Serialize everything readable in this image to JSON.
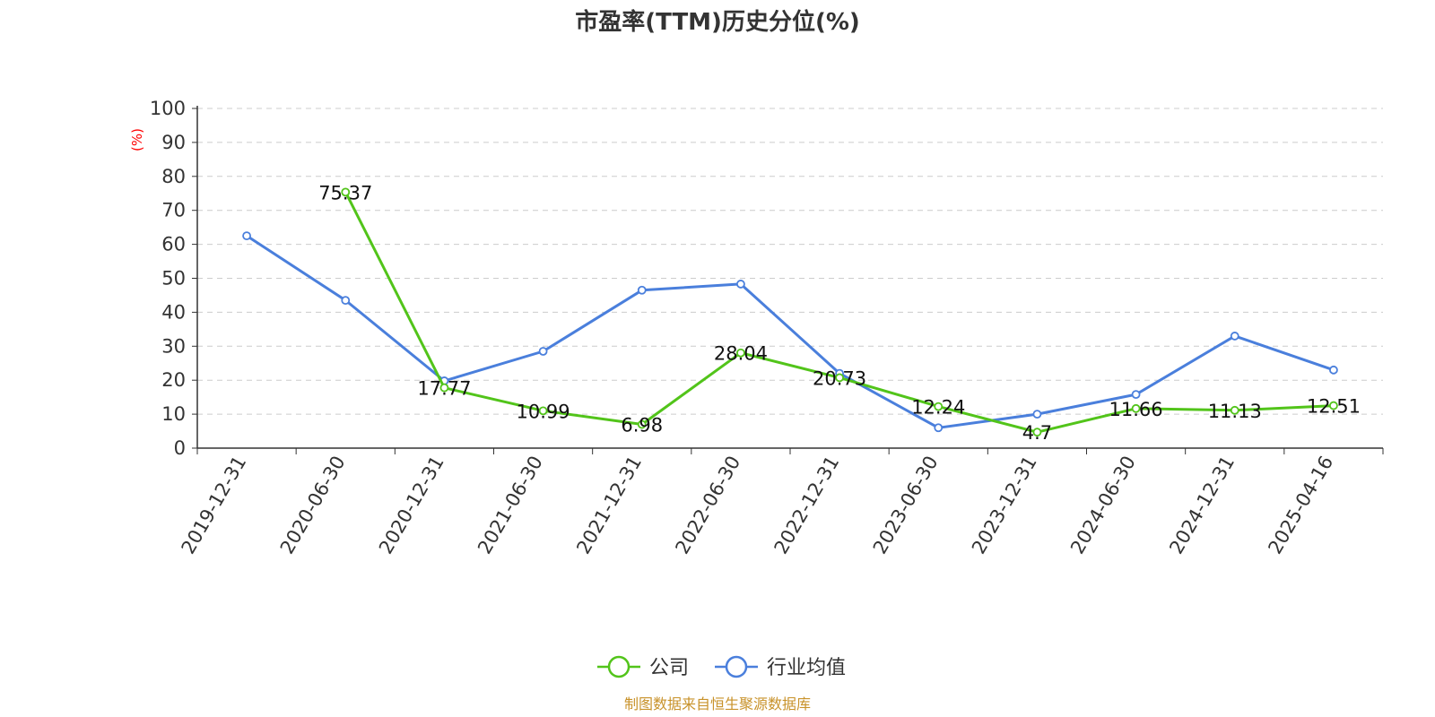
{
  "chart_data": {
    "type": "line",
    "title": "市盈率(TTM)历史分位(%)",
    "y_unit": "(%)",
    "ylim": [
      0,
      100
    ],
    "y_ticks": [
      0,
      10,
      20,
      30,
      40,
      50,
      60,
      70,
      80,
      90,
      100
    ],
    "grid": true,
    "legend_position": "bottom",
    "categories": [
      "2019-12-31",
      "2020-06-30",
      "2020-12-31",
      "2021-06-30",
      "2021-12-31",
      "2022-06-30",
      "2022-12-31",
      "2023-06-30",
      "2023-12-31",
      "2024-06-30",
      "2024-12-31",
      "2025-04-16"
    ],
    "series": [
      {
        "name": "公司",
        "color": "#52c41a",
        "values": [
          null,
          75.37,
          17.77,
          10.99,
          6.98,
          28.04,
          20.73,
          12.24,
          4.7,
          11.66,
          11.13,
          12.51
        ],
        "labels": [
          "",
          "75.37",
          "17.77",
          "10.99",
          "6.98",
          "28.04",
          "20.73",
          "12.24",
          "4.7",
          "11.66",
          "11.13",
          "12.51"
        ]
      },
      {
        "name": "行业均值",
        "color": "#4a7fdc",
        "values": [
          62.5,
          43.5,
          19.8,
          28.5,
          46.5,
          48.3,
          22.0,
          6.0,
          10.0,
          15.8,
          33.0,
          23.0
        ]
      }
    ]
  },
  "source_note": "制图数据来自恒生聚源数据库"
}
